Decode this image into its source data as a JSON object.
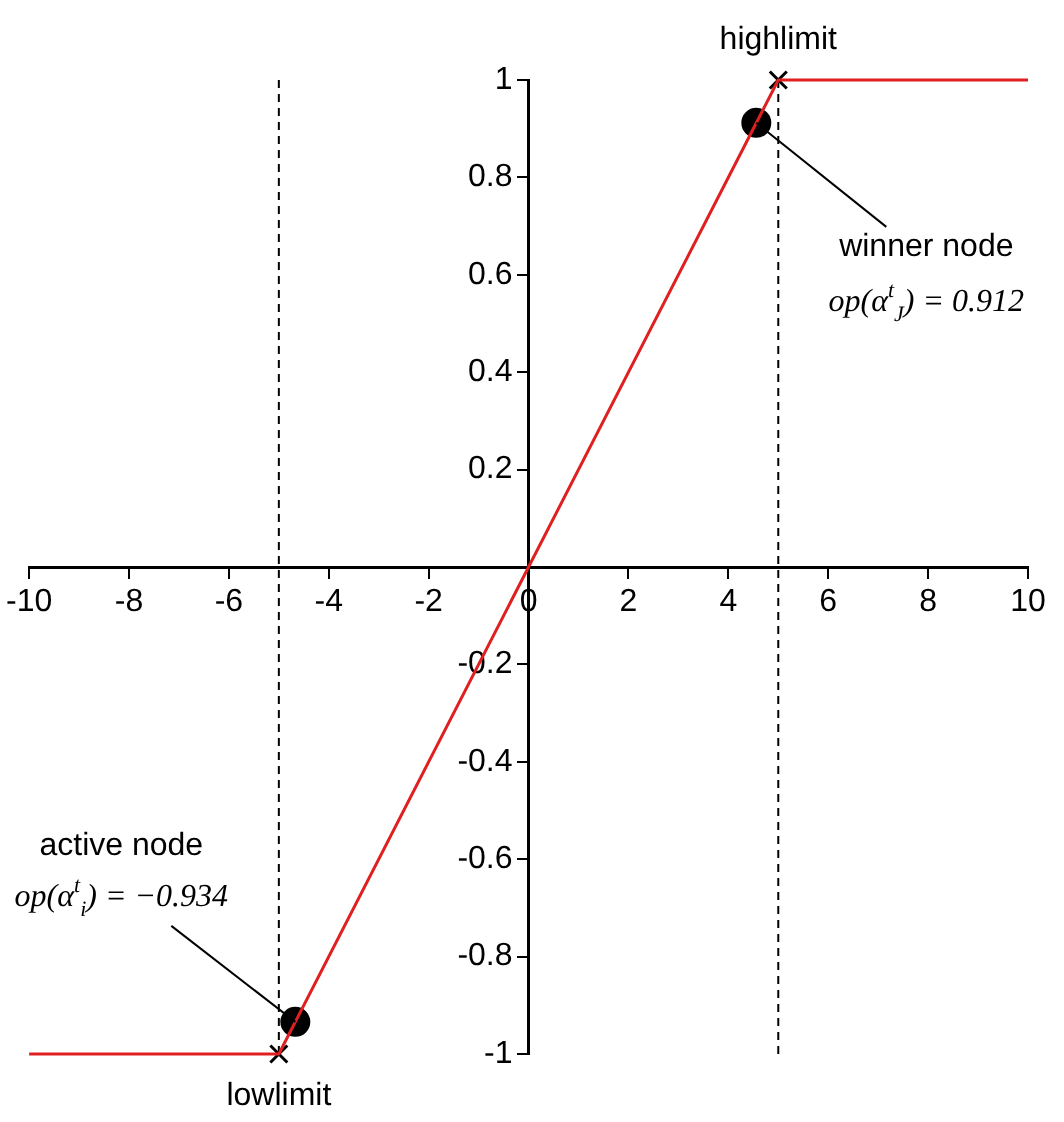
{
  "chart_data": {
    "type": "line",
    "xlim": [
      -10,
      10
    ],
    "ylim": [
      -1,
      1
    ],
    "xticks": [
      -10,
      -8,
      -6,
      -4,
      -2,
      0,
      2,
      4,
      6,
      8,
      10
    ],
    "yticks": [
      -1,
      -0.8,
      -0.6,
      -0.4,
      -0.2,
      {
        "value": 0,
        "label": null
      },
      0.2,
      0.4,
      0.6,
      0.8,
      1
    ],
    "grid": false,
    "legend": false,
    "series": [
      {
        "type": "line",
        "color": "#e02020",
        "x": [
          -10,
          -5,
          5,
          10
        ],
        "values": [
          -1,
          -1,
          1,
          1
        ],
        "marker": "none",
        "line_style": "solid"
      },
      {
        "type": "scatter",
        "color": "#000000",
        "x": [
          -5,
          5
        ],
        "values": [
          -1,
          1
        ],
        "marker": "cross"
      },
      {
        "type": "scatter",
        "color": "#000000",
        "x": [
          -4.67,
          4.56
        ],
        "values": [
          -0.934,
          0.912
        ],
        "marker": "circle"
      }
    ],
    "ref_lines": [
      {
        "axis": "x",
        "value": 5,
        "color": "#000000",
        "line_style": "dashed"
      },
      {
        "axis": "x",
        "value": -5,
        "color": "#000000",
        "line_style": "dashed"
      }
    ],
    "annotations": [
      {
        "text": "highlimit",
        "x": 5,
        "y": 1
      },
      {
        "text": "lowlimit",
        "x": -5,
        "y": -1
      },
      {
        "text": "winner node",
        "x": 4.56,
        "y": 0.912
      },
      "op(α$^{t}$$_{J}$) = 0.912",
      "active node",
      {
        "text": "op(α$^{t}$$_{i}$) = −0.934",
        "x": -4.67,
        "y": -0.934
      }
    ]
  }
}
